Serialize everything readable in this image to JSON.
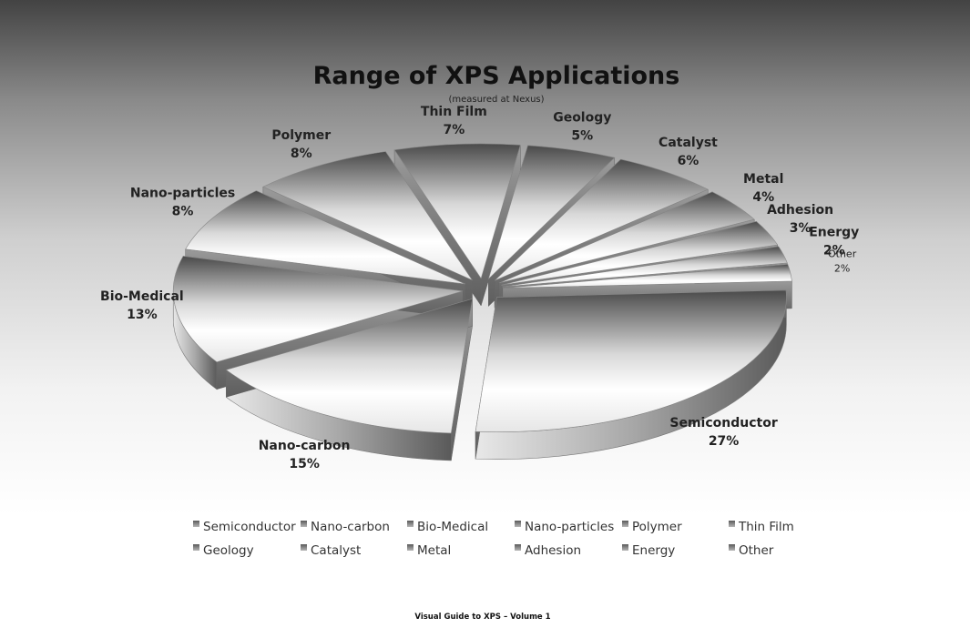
{
  "chart_data": {
    "type": "pie",
    "title": "Range of XPS Applications",
    "subtitle": "(measured at Nexus)",
    "categories": [
      "Semiconductor",
      "Nano-carbon",
      "Bio-Medical",
      "Nano-particles",
      "Polymer",
      "Thin Film",
      "Geology",
      "Catalyst",
      "Metal",
      "Adhesion",
      "Energy",
      "Other"
    ],
    "values": [
      27,
      15,
      13,
      8,
      8,
      7,
      5,
      6,
      4,
      3,
      2,
      2
    ],
    "value_labels": [
      "27%",
      "15%",
      "13%",
      "8%",
      "8%",
      "7%",
      "5%",
      "6%",
      "4%",
      "3%",
      "2%",
      "2%"
    ],
    "exploded": true,
    "three_d": true,
    "legend": {
      "position": "bottom"
    }
  },
  "footer": {
    "text": "Visual Guide to XPS – Volume 1"
  }
}
